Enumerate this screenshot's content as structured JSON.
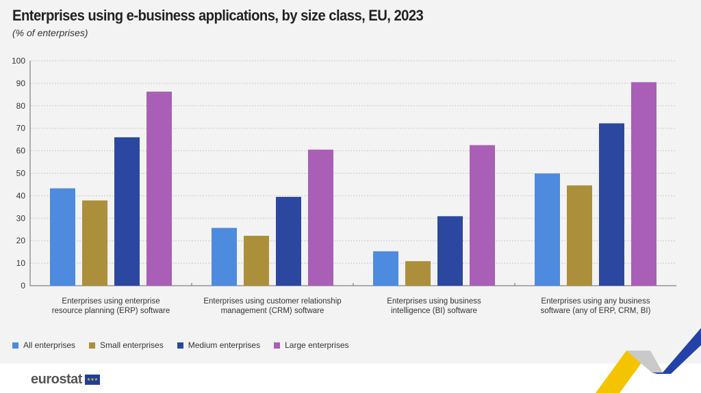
{
  "chart_data": {
    "type": "bar",
    "title": "Enterprises using e-business applications, by size class, EU, 2023",
    "subtitle": "(% of enterprises)",
    "categories": [
      [
        "Enterprises using enterprise",
        "resource planning (ERP) software"
      ],
      [
        "Enterprises using customer relationship",
        "management (CRM) software"
      ],
      [
        "Enterprises using business",
        "intelligence (BI) software"
      ],
      [
        "Enterprises using any business",
        "software (any of ERP, CRM, BI)"
      ]
    ],
    "series": [
      {
        "name": "All enterprises",
        "color": "#4e8ade",
        "values": [
          43.3,
          25.7,
          15.3,
          49.9
        ]
      },
      {
        "name": "Small enterprises",
        "color": "#ab8f3a",
        "values": [
          37.9,
          22.2,
          10.9,
          44.6
        ]
      },
      {
        "name": "Medium enterprises",
        "color": "#2b47a0",
        "values": [
          66.0,
          39.5,
          30.9,
          72.2
        ]
      },
      {
        "name": "Large enterprises",
        "color": "#a95fb6",
        "values": [
          86.3,
          60.5,
          62.5,
          90.5
        ]
      }
    ],
    "ylim": [
      0,
      100
    ],
    "yticks": [
      0,
      10,
      20,
      30,
      40,
      50,
      60,
      70,
      80,
      90,
      100
    ],
    "grid": true,
    "legend": "bottom-left"
  },
  "footer": {
    "logo": "eurostat"
  }
}
